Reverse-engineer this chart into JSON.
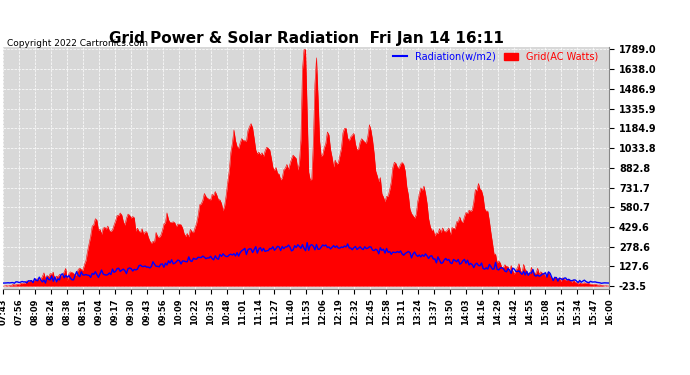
{
  "title": "Grid Power & Solar Radiation  Fri Jan 14 16:11",
  "copyright": "Copyright 2022 Cartronics.com",
  "legend_radiation": "Radiation(w/m2)",
  "legend_grid": "Grid(AC Watts)",
  "yticks": [
    1789.0,
    1638.0,
    1486.9,
    1335.9,
    1184.9,
    1033.8,
    882.8,
    731.7,
    580.7,
    429.6,
    278.6,
    127.6,
    -23.5
  ],
  "ymin": -23.5,
  "ymax": 1789.0,
  "bg_color": "#ffffff",
  "plot_bg_color": "#d8d8d8",
  "grid_color": "#ffffff",
  "bar_color": "#ff0000",
  "line_color": "#0000ff",
  "title_color": "#000000",
  "copyright_color": "#000000",
  "radiation_color": "#0000ff",
  "grid_ac_color": "#ff0000",
  "xtick_labels": [
    "07:43",
    "07:56",
    "08:09",
    "08:24",
    "08:38",
    "08:51",
    "09:04",
    "09:17",
    "09:30",
    "09:43",
    "09:56",
    "10:09",
    "10:22",
    "10:35",
    "10:48",
    "11:01",
    "11:14",
    "11:27",
    "11:40",
    "11:53",
    "12:06",
    "12:19",
    "12:32",
    "12:45",
    "12:58",
    "13:11",
    "13:24",
    "13:37",
    "13:50",
    "14:03",
    "14:16",
    "14:29",
    "14:42",
    "14:55",
    "15:08",
    "15:21",
    "15:34",
    "15:47",
    "16:00"
  ],
  "n_points": 390,
  "baseline": -23.5,
  "rad_peak": 300,
  "grid_base_peak": 450,
  "title_fontsize": 11
}
